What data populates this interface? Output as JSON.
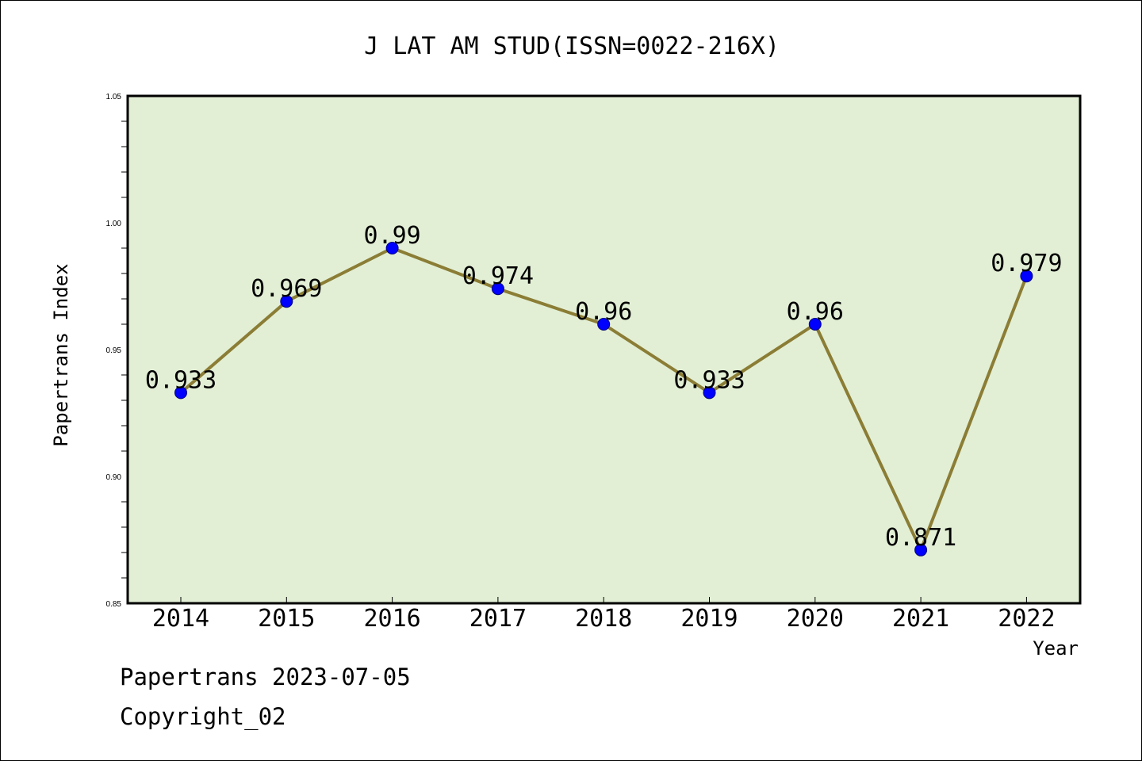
{
  "colors": {
    "plot_background": "#e2efd5",
    "line": "#8b7d35",
    "marker": "#0000ff",
    "axis": "#000000"
  },
  "footer": {
    "source_line": "Papertrans 2023-07-05",
    "copyright_line": "Copyright_02"
  },
  "chart_data": {
    "type": "line",
    "title": "J LAT AM STUD(ISSN=0022-216X)",
    "xlabel": "Year",
    "ylabel": "Papertrans Index",
    "categories": [
      "2014",
      "2015",
      "2016",
      "2017",
      "2018",
      "2019",
      "2020",
      "2021",
      "2022"
    ],
    "values": [
      0.933,
      0.969,
      0.99,
      0.974,
      0.96,
      0.933,
      0.96,
      0.871,
      0.979
    ],
    "data_labels": [
      "0.933",
      "0.969",
      "0.99",
      "0.974",
      "0.96",
      "0.933",
      "0.96",
      "0.871",
      "0.979"
    ],
    "ylim": [
      0.85,
      1.05
    ],
    "yticks": [
      "0.85",
      "0.90",
      "0.95",
      "1.00",
      "1.05"
    ],
    "grid": false,
    "legend": "none"
  }
}
